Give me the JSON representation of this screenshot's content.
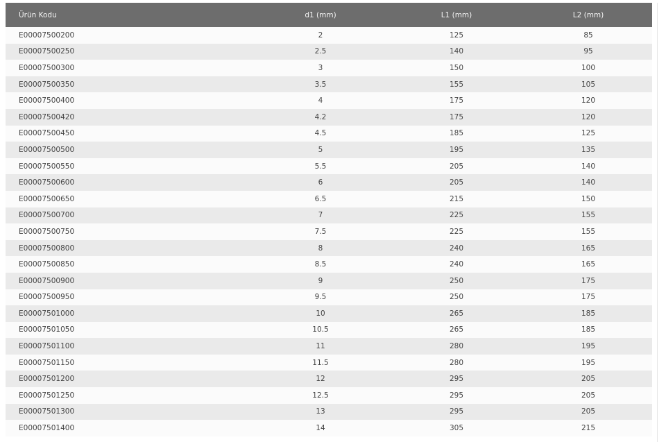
{
  "table": {
    "headers": [
      "Ürün Kodu",
      "d1 (mm)",
      "L1 (mm)",
      "L2 (mm)"
    ],
    "rows": [
      [
        "E00007500200",
        "2",
        "125",
        "85"
      ],
      [
        "E00007500250",
        "2.5",
        "140",
        "95"
      ],
      [
        "E00007500300",
        "3",
        "150",
        "100"
      ],
      [
        "E00007500350",
        "3.5",
        "155",
        "105"
      ],
      [
        "E00007500400",
        "4",
        "175",
        "120"
      ],
      [
        "E00007500420",
        "4.2",
        "175",
        "120"
      ],
      [
        "E00007500450",
        "4.5",
        "185",
        "125"
      ],
      [
        "E00007500500",
        "5",
        "195",
        "135"
      ],
      [
        "E00007500550",
        "5.5",
        "205",
        "140"
      ],
      [
        "E00007500600",
        "6",
        "205",
        "140"
      ],
      [
        "E00007500650",
        "6.5",
        "215",
        "150"
      ],
      [
        "E00007500700",
        "7",
        "225",
        "155"
      ],
      [
        "E00007500750",
        "7.5",
        "225",
        "155"
      ],
      [
        "E00007500800",
        "8",
        "240",
        "165"
      ],
      [
        "E00007500850",
        "8.5",
        "240",
        "165"
      ],
      [
        "E00007500900",
        "9",
        "250",
        "175"
      ],
      [
        "E00007500950",
        "9.5",
        "250",
        "175"
      ],
      [
        "E00007501000",
        "10",
        "265",
        "185"
      ],
      [
        "E00007501050",
        "10.5",
        "265",
        "185"
      ],
      [
        "E00007501100",
        "11",
        "280",
        "195"
      ],
      [
        "E00007501150",
        "11.5",
        "280",
        "195"
      ],
      [
        "E00007501200",
        "12",
        "295",
        "205"
      ],
      [
        "E00007501250",
        "12.5",
        "295",
        "205"
      ],
      [
        "E00007501300",
        "13",
        "295",
        "205"
      ],
      [
        "E00007501400",
        "14",
        "305",
        "215"
      ]
    ]
  },
  "colors": {
    "header_bg": "#6d6d6d",
    "row_light": "#fbfbfb",
    "row_dark": "#eaeaea"
  }
}
